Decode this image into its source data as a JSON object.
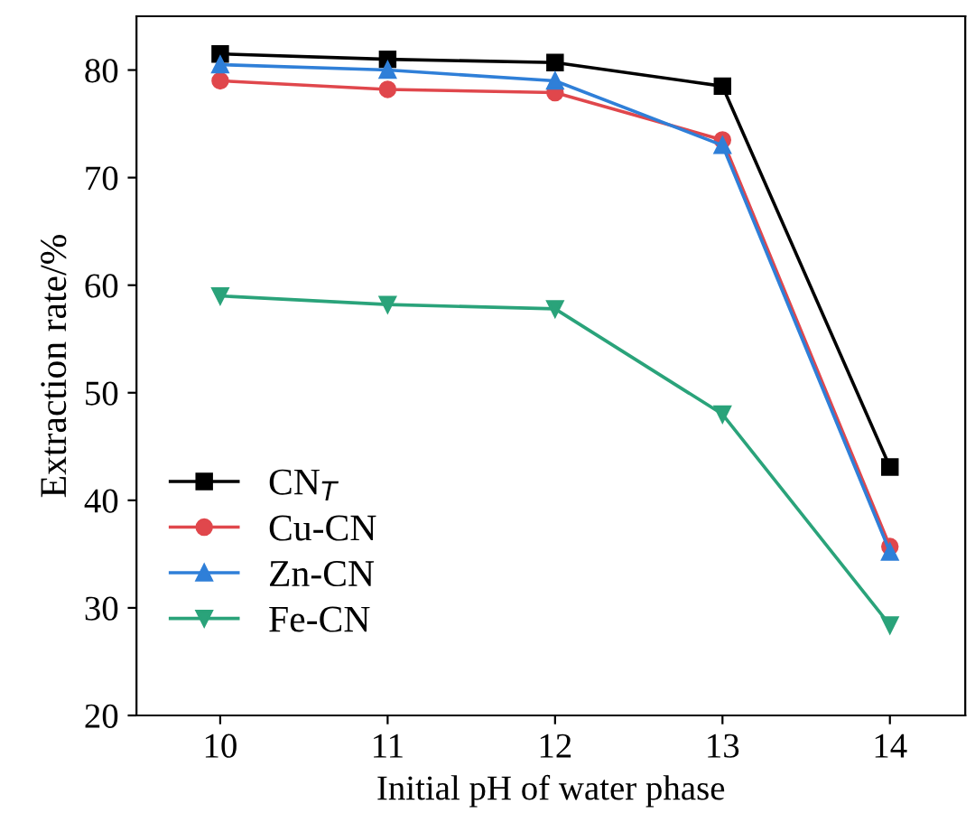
{
  "chart_data": {
    "type": "line",
    "xlabel": "Initial pH of water phase",
    "ylabel": "Extraction rate/%",
    "x": [
      10,
      11,
      12,
      13,
      14
    ],
    "xlim": [
      9.5,
      14.45
    ],
    "xticks": [
      10,
      11,
      12,
      13,
      14
    ],
    "ylim": [
      20,
      85
    ],
    "yticks": [
      20,
      30,
      40,
      50,
      60,
      70,
      80
    ],
    "grid": false,
    "legend": "bottom left",
    "line_style": "solid",
    "series": [
      {
        "name": "CN$_{T}$",
        "color": "#000000",
        "marker": "square",
        "values": [
          81.5,
          81.0,
          80.7,
          78.5,
          43.1
        ]
      },
      {
        "name": "Cu-CN",
        "color": "#e0474c",
        "marker": "circle",
        "values": [
          79.0,
          78.2,
          77.9,
          73.5,
          35.7
        ]
      },
      {
        "name": "Zn-CN",
        "color": "#2f7fd8",
        "marker": "triangle",
        "values": [
          80.5,
          80.0,
          79.0,
          73.0,
          35.2
        ]
      },
      {
        "name": "Fe-CN",
        "color": "#2aa37a",
        "marker": "triangle-down",
        "values": [
          59.0,
          58.2,
          57.8,
          48.0,
          28.4
        ]
      }
    ]
  }
}
